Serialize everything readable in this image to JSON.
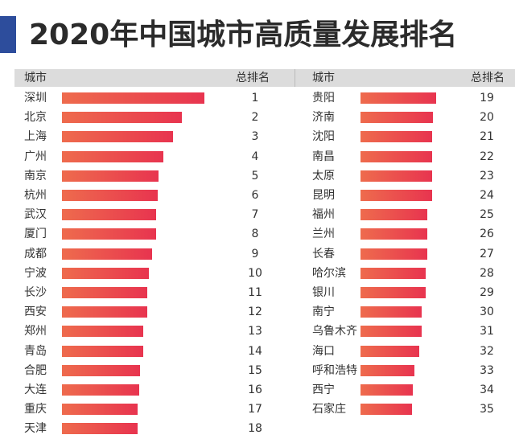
{
  "title": "2020年中国城市高质量发展排名",
  "header": {
    "city": "城市",
    "rank": "总排名"
  },
  "colors": {
    "accent": "#2d4d9c",
    "bar_start": "#ee6b4d",
    "bar_end": "#e8344f",
    "header_bg": "#dcdcdc"
  },
  "chart_data": {
    "type": "bar",
    "orientation": "horizontal",
    "title": "2020年中国城市高质量发展排名",
    "note": "bar lengths are estimated relative values (no printed scale)",
    "left": [
      {
        "city": "深圳",
        "rank": "1",
        "value": 100
      },
      {
        "city": "北京",
        "rank": "2",
        "value": 84
      },
      {
        "city": "上海",
        "rank": "3",
        "value": 78
      },
      {
        "city": "广州",
        "rank": "4",
        "value": 71
      },
      {
        "city": "南京",
        "rank": "5",
        "value": 68
      },
      {
        "city": "杭州",
        "rank": "6",
        "value": 67
      },
      {
        "city": "武汉",
        "rank": "7",
        "value": 66
      },
      {
        "city": "厦门",
        "rank": "8",
        "value": 66
      },
      {
        "city": "成都",
        "rank": "9",
        "value": 63
      },
      {
        "city": "宁波",
        "rank": "10",
        "value": 61
      },
      {
        "city": "长沙",
        "rank": "11",
        "value": 60
      },
      {
        "city": "西安",
        "rank": "12",
        "value": 60
      },
      {
        "city": "郑州",
        "rank": "13",
        "value": 57
      },
      {
        "city": "青岛",
        "rank": "14",
        "value": 57
      },
      {
        "city": "合肥",
        "rank": "15",
        "value": 55
      },
      {
        "city": "大连",
        "rank": "16",
        "value": 54
      },
      {
        "city": "重庆",
        "rank": "17",
        "value": 53
      },
      {
        "city": "天津",
        "rank": "18",
        "value": 53
      }
    ],
    "right": [
      {
        "city": "贵阳",
        "rank": "19",
        "value": 53
      },
      {
        "city": "济南",
        "rank": "20",
        "value": 51
      },
      {
        "city": "沈阳",
        "rank": "21",
        "value": 50
      },
      {
        "city": "南昌",
        "rank": "22",
        "value": 50
      },
      {
        "city": "太原",
        "rank": "23",
        "value": 50
      },
      {
        "city": "昆明",
        "rank": "24",
        "value": 50
      },
      {
        "city": "福州",
        "rank": "25",
        "value": 47
      },
      {
        "city": "兰州",
        "rank": "26",
        "value": 47
      },
      {
        "city": "长春",
        "rank": "27",
        "value": 47
      },
      {
        "city": "哈尔滨",
        "rank": "28",
        "value": 46
      },
      {
        "city": "银川",
        "rank": "29",
        "value": 46
      },
      {
        "city": "南宁",
        "rank": "30",
        "value": 43
      },
      {
        "city": "乌鲁木齐",
        "rank": "31",
        "value": 43
      },
      {
        "city": "海口",
        "rank": "32",
        "value": 41
      },
      {
        "city": "呼和浩特",
        "rank": "33",
        "value": 38
      },
      {
        "city": "西宁",
        "rank": "34",
        "value": 37
      },
      {
        "city": "石家庄",
        "rank": "35",
        "value": 36
      }
    ]
  }
}
